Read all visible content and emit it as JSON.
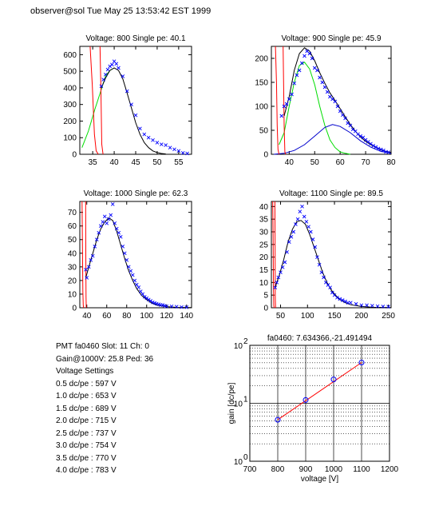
{
  "header": "observer@sol  Tue May 25 13:53:42 EST 1999",
  "info": {
    "pmt_line": "PMT fa0460 Slot: 11 Ch: 0",
    "gain_line": "Gain@1000V: 25.8 Ped: 36",
    "settings_title": "Voltage Settings",
    "settings": [
      "0.5 dc/pe : 597 V",
      "1.0 dc/pe : 653 V",
      "1.5 dc/pe : 689 V",
      "2.0 dc/pe : 715 V",
      "2.5 dc/pe : 737 V",
      "3.0 dc/pe : 754 V",
      "3.5 dc/pe : 770 V",
      "4.0 dc/pe : 783 V"
    ]
  },
  "colors": {
    "data": "#0000ff",
    "fit": "#000000",
    "pedestal": "#ff0000",
    "component1": "#00dd00",
    "component2": "#0000cc",
    "gainline": "#ff0000"
  },
  "chart_data": [
    {
      "type": "scatter",
      "title": "Voltage: 800 Single pe: 40.1",
      "xlim": [
        32,
        58
      ],
      "ylim": [
        0,
        650
      ],
      "xticks": [
        35,
        40,
        45,
        50,
        55
      ],
      "yticks": [
        0,
        100,
        200,
        300,
        400,
        500,
        600
      ],
      "pedestal": [
        [
          34.4,
          650
        ],
        [
          34.9,
          420
        ],
        [
          35.4,
          120
        ],
        [
          35.8,
          20
        ],
        [
          36.3,
          0
        ]
      ],
      "pedestal2": [
        [
          36.7,
          650
        ],
        [
          36.9,
          400
        ],
        [
          37.1,
          60
        ],
        [
          37.4,
          0
        ]
      ],
      "data_points": [
        [
          37.0,
          410
        ],
        [
          37.5,
          450
        ],
        [
          38.0,
          480
        ],
        [
          38.5,
          510
        ],
        [
          39.0,
          530
        ],
        [
          39.5,
          540
        ],
        [
          40.0,
          560
        ],
        [
          40.5,
          545
        ],
        [
          41.0,
          520
        ],
        [
          42.0,
          470
        ],
        [
          43.0,
          380
        ],
        [
          44.0,
          300
        ],
        [
          45.0,
          235
        ],
        [
          46.0,
          155
        ],
        [
          47.0,
          120
        ],
        [
          48.0,
          100
        ],
        [
          49.0,
          85
        ],
        [
          50.0,
          70
        ],
        [
          51.0,
          60
        ],
        [
          52.0,
          55
        ],
        [
          53.0,
          40
        ],
        [
          54.0,
          30
        ],
        [
          55.0,
          20
        ],
        [
          56.0,
          8
        ],
        [
          57.0,
          5
        ]
      ],
      "fit": [
        [
          37.0,
          400
        ],
        [
          38.0,
          460
        ],
        [
          39.0,
          505
        ],
        [
          40.0,
          520
        ],
        [
          41.0,
          505
        ],
        [
          42.0,
          455
        ],
        [
          43.0,
          370
        ],
        [
          44.0,
          280
        ],
        [
          45.0,
          190
        ],
        [
          46.0,
          120
        ],
        [
          47.0,
          70
        ],
        [
          48.0,
          40
        ],
        [
          49.0,
          20
        ],
        [
          50.0,
          10
        ],
        [
          51.0,
          5
        ],
        [
          52.0,
          2
        ]
      ],
      "component1": [
        [
          32.5,
          40
        ],
        [
          34.0,
          140
        ],
        [
          35.5,
          270
        ],
        [
          37.0,
          390
        ],
        [
          38.0,
          470
        ],
        [
          39.0,
          505
        ],
        [
          40.0,
          520
        ]
      ]
    },
    {
      "type": "scatter",
      "title": "Voltage: 900 Single pe: 45.9",
      "xlim": [
        33,
        80
      ],
      "ylim": [
        0,
        225
      ],
      "xticks": [
        40,
        50,
        60,
        70,
        80
      ],
      "yticks": [
        0,
        50,
        100,
        150,
        200
      ],
      "pedestal": [
        [
          34.6,
          225
        ],
        [
          35.0,
          150
        ],
        [
          35.3,
          60
        ],
        [
          35.6,
          10
        ],
        [
          36.0,
          0
        ]
      ],
      "pedestal2": [
        [
          37.6,
          225
        ],
        [
          37.8,
          150
        ],
        [
          38.0,
          60
        ],
        [
          38.3,
          5
        ],
        [
          38.6,
          0
        ]
      ],
      "data_points": [
        [
          37,
          80
        ],
        [
          38,
          100
        ],
        [
          39,
          105
        ],
        [
          40,
          115
        ],
        [
          41,
          125
        ],
        [
          42,
          148
        ],
        [
          43,
          165
        ],
        [
          44,
          175
        ],
        [
          45,
          190
        ],
        [
          46,
          205
        ],
        [
          47,
          215
        ],
        [
          48,
          210
        ],
        [
          49,
          200
        ],
        [
          50,
          180
        ],
        [
          51,
          175
        ],
        [
          52,
          160
        ],
        [
          53,
          150
        ],
        [
          54,
          140
        ],
        [
          55,
          130
        ],
        [
          56,
          120
        ],
        [
          57,
          115
        ],
        [
          58,
          110
        ],
        [
          59,
          100
        ],
        [
          60,
          90
        ],
        [
          61,
          82
        ],
        [
          62,
          75
        ],
        [
          63,
          65
        ],
        [
          64,
          60
        ],
        [
          65,
          52
        ],
        [
          66,
          48
        ],
        [
          67,
          42
        ],
        [
          68,
          38
        ],
        [
          69,
          35
        ],
        [
          70,
          30
        ],
        [
          71,
          26
        ],
        [
          72,
          22
        ],
        [
          73,
          18
        ],
        [
          74,
          15
        ],
        [
          75,
          12
        ],
        [
          76,
          10
        ],
        [
          77,
          8
        ],
        [
          78,
          5
        ],
        [
          79,
          4
        ]
      ],
      "fit": [
        [
          38,
          80
        ],
        [
          40,
          120
        ],
        [
          42,
          175
        ],
        [
          44,
          210
        ],
        [
          46,
          222
        ],
        [
          48,
          215
        ],
        [
          50,
          195
        ],
        [
          52,
          170
        ],
        [
          54,
          148
        ],
        [
          56,
          128
        ],
        [
          58,
          112
        ],
        [
          60,
          95
        ],
        [
          62,
          78
        ],
        [
          64,
          62
        ],
        [
          66,
          48
        ],
        [
          68,
          36
        ],
        [
          70,
          27
        ],
        [
          72,
          20
        ],
        [
          74,
          14
        ],
        [
          76,
          9
        ],
        [
          78,
          6
        ],
        [
          80,
          4
        ]
      ],
      "component1": [
        [
          36,
          20
        ],
        [
          38,
          45
        ],
        [
          40,
          100
        ],
        [
          42,
          150
        ],
        [
          44,
          185
        ],
        [
          46,
          192
        ],
        [
          48,
          178
        ],
        [
          50,
          145
        ],
        [
          52,
          100
        ],
        [
          54,
          60
        ],
        [
          56,
          30
        ],
        [
          58,
          14
        ],
        [
          60,
          5
        ],
        [
          62,
          2
        ],
        [
          64,
          0
        ]
      ],
      "component2": [
        [
          34,
          0
        ],
        [
          38,
          2
        ],
        [
          42,
          8
        ],
        [
          46,
          20
        ],
        [
          50,
          38
        ],
        [
          54,
          56
        ],
        [
          57,
          62
        ],
        [
          60,
          58
        ],
        [
          64,
          45
        ],
        [
          68,
          28
        ],
        [
          72,
          15
        ],
        [
          76,
          6
        ],
        [
          80,
          2
        ]
      ]
    },
    {
      "type": "scatter",
      "title": "Voltage: 1000 Single pe: 62.3",
      "xlim": [
        33,
        145
      ],
      "ylim": [
        0,
        78
      ],
      "xticks": [
        40,
        60,
        80,
        100,
        120,
        140
      ],
      "yticks": [
        0,
        10,
        20,
        30,
        40,
        50,
        60,
        70
      ],
      "pedestal": [
        [
          35.2,
          78
        ],
        [
          35.6,
          45
        ],
        [
          36.0,
          12
        ],
        [
          36.4,
          2
        ],
        [
          36.8,
          0
        ]
      ],
      "pedestal2": [
        [
          38.8,
          78
        ],
        [
          39.0,
          40
        ],
        [
          39.2,
          8
        ],
        [
          39.5,
          0
        ]
      ],
      "data_points": [
        [
          39,
          28
        ],
        [
          40,
          22
        ],
        [
          42,
          30
        ],
        [
          44,
          35
        ],
        [
          46,
          38
        ],
        [
          48,
          45
        ],
        [
          50,
          50
        ],
        [
          52,
          55
        ],
        [
          54,
          60
        ],
        [
          56,
          63
        ],
        [
          58,
          67
        ],
        [
          60,
          62
        ],
        [
          62,
          65
        ],
        [
          64,
          68
        ],
        [
          66,
          76
        ],
        [
          68,
          62
        ],
        [
          70,
          58
        ],
        [
          72,
          55
        ],
        [
          74,
          52
        ],
        [
          76,
          45
        ],
        [
          78,
          40
        ],
        [
          80,
          35
        ],
        [
          82,
          30
        ],
        [
          84,
          27
        ],
        [
          86,
          24
        ],
        [
          88,
          20
        ],
        [
          90,
          17
        ],
        [
          92,
          15
        ],
        [
          94,
          12
        ],
        [
          96,
          10
        ],
        [
          98,
          8
        ],
        [
          100,
          7
        ],
        [
          102,
          6
        ],
        [
          104,
          5
        ],
        [
          106,
          4
        ],
        [
          108,
          3.5
        ],
        [
          110,
          3
        ],
        [
          112,
          2.5
        ],
        [
          114,
          2
        ],
        [
          116,
          2
        ],
        [
          118,
          1.5
        ],
        [
          120,
          1
        ],
        [
          125,
          1
        ],
        [
          130,
          0.8
        ],
        [
          135,
          0.5
        ],
        [
          140,
          0.4
        ]
      ],
      "fit": [
        [
          39,
          22
        ],
        [
          42,
          30
        ],
        [
          46,
          40
        ],
        [
          50,
          50
        ],
        [
          54,
          58
        ],
        [
          58,
          63
        ],
        [
          62,
          66
        ],
        [
          66,
          64
        ],
        [
          70,
          56
        ],
        [
          74,
          46
        ],
        [
          78,
          36
        ],
        [
          82,
          27
        ],
        [
          86,
          20
        ],
        [
          90,
          14
        ],
        [
          95,
          9
        ],
        [
          100,
          6
        ],
        [
          105,
          3.5
        ],
        [
          110,
          2
        ],
        [
          120,
          0.8
        ],
        [
          130,
          0.3
        ],
        [
          145,
          0.1
        ]
      ]
    },
    {
      "type": "scatter",
      "title": "Voltage: 1100 Single pe: 89.5",
      "xlim": [
        33,
        255
      ],
      "ylim": [
        0,
        42
      ],
      "xticks": [
        50,
        100,
        150,
        200,
        250
      ],
      "yticks": [
        0,
        5,
        10,
        15,
        20,
        25,
        30,
        35,
        40
      ],
      "pedestal": [
        [
          35.5,
          42
        ],
        [
          36.2,
          28
        ],
        [
          36.8,
          8
        ],
        [
          37.5,
          1
        ],
        [
          38,
          0
        ]
      ],
      "pedestal2": [
        [
          39.5,
          42
        ],
        [
          39.9,
          25
        ],
        [
          40.3,
          4
        ],
        [
          40.8,
          0
        ]
      ],
      "data_points": [
        [
          40,
          8
        ],
        [
          43,
          10
        ],
        [
          46,
          12
        ],
        [
          50,
          14
        ],
        [
          54,
          16
        ],
        [
          58,
          18
        ],
        [
          62,
          22
        ],
        [
          66,
          26
        ],
        [
          70,
          28
        ],
        [
          74,
          30
        ],
        [
          78,
          33
        ],
        [
          82,
          35
        ],
        [
          86,
          38
        ],
        [
          90,
          40
        ],
        [
          94,
          36
        ],
        [
          98,
          34
        ],
        [
          102,
          32
        ],
        [
          106,
          30
        ],
        [
          110,
          27
        ],
        [
          114,
          24
        ],
        [
          118,
          20
        ],
        [
          122,
          17
        ],
        [
          126,
          14
        ],
        [
          130,
          12
        ],
        [
          134,
          10
        ],
        [
          138,
          9
        ],
        [
          142,
          8
        ],
        [
          146,
          6
        ],
        [
          150,
          5
        ],
        [
          155,
          4
        ],
        [
          160,
          3.5
        ],
        [
          165,
          3
        ],
        [
          170,
          2.5
        ],
        [
          175,
          2
        ],
        [
          180,
          2
        ],
        [
          190,
          1.5
        ],
        [
          200,
          1
        ],
        [
          210,
          1
        ],
        [
          220,
          0.8
        ],
        [
          230,
          0.6
        ],
        [
          240,
          0.5
        ],
        [
          250,
          0.4
        ]
      ],
      "fit": [
        [
          40,
          8
        ],
        [
          48,
          13
        ],
        [
          56,
          19
        ],
        [
          64,
          26
        ],
        [
          72,
          31
        ],
        [
          80,
          34
        ],
        [
          88,
          34.5
        ],
        [
          96,
          33
        ],
        [
          104,
          29
        ],
        [
          112,
          24
        ],
        [
          120,
          19
        ],
        [
          128,
          14
        ],
        [
          136,
          10
        ],
        [
          144,
          7
        ],
        [
          152,
          5
        ],
        [
          160,
          3.2
        ],
        [
          170,
          2
        ],
        [
          180,
          1.2
        ],
        [
          200,
          0.5
        ],
        [
          220,
          0.2
        ],
        [
          255,
          0.1
        ]
      ]
    },
    {
      "type": "scatter",
      "title": "fa0460: 7.634366,-21.491494",
      "xlabel": "voltage [V]",
      "ylabel": "gain [dc/pe]",
      "xlim": [
        700,
        1200
      ],
      "ylim": [
        1,
        100
      ],
      "yscale": "log",
      "grid": true,
      "xticks": [
        700,
        800,
        900,
        1000,
        1100,
        1200
      ],
      "yticks": [
        1,
        10,
        100
      ],
      "ytick_labels": [
        "10",
        "10",
        "10"
      ],
      "ytick_exponents": [
        "0",
        "1",
        "2"
      ],
      "points": [
        [
          800,
          5.2
        ],
        [
          900,
          11.4
        ],
        [
          1000,
          25.8
        ],
        [
          1100,
          50.5
        ]
      ],
      "fit_line": [
        [
          800,
          5.2
        ],
        [
          1100,
          50.5
        ]
      ]
    }
  ]
}
